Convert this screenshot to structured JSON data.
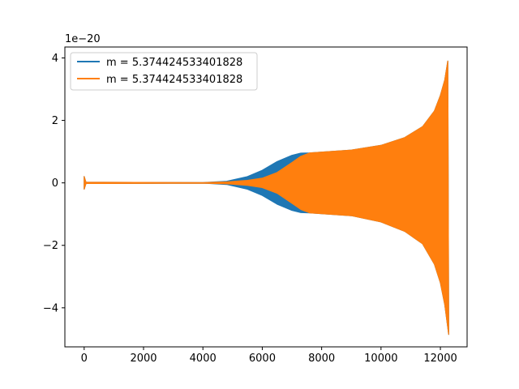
{
  "chart_data": {
    "type": "line",
    "title": "",
    "xlabel": "",
    "ylabel": "",
    "y_offset_text": "1e−20",
    "xlim": [
      -650,
      12900
    ],
    "ylim": [
      -5.25,
      4.35
    ],
    "x_ticks": [
      0,
      2000,
      4000,
      6000,
      8000,
      10000,
      12000
    ],
    "x_tick_labels": [
      "0",
      "2000",
      "4000",
      "6000",
      "8000",
      "10000",
      "12000"
    ],
    "y_ticks": [
      -4,
      -2,
      0,
      2,
      4
    ],
    "y_tick_labels": [
      "−4",
      "−2",
      "0",
      "2",
      "4"
    ],
    "grid": false,
    "legend_position": "upper left",
    "series": [
      {
        "name": "m = 5.374424533401828",
        "color": "#1f77b4",
        "envelope_upper": [
          [
            0,
            0.2
          ],
          [
            60,
            0.02
          ],
          [
            4000,
            0.01
          ],
          [
            4800,
            0.05
          ],
          [
            5500,
            0.2
          ],
          [
            6000,
            0.4
          ],
          [
            6500,
            0.68
          ],
          [
            7000,
            0.88
          ],
          [
            7300,
            0.95
          ],
          [
            7600,
            0.96
          ],
          [
            9000,
            1.05
          ],
          [
            10000,
            1.2
          ],
          [
            10800,
            1.45
          ],
          [
            11400,
            1.8
          ],
          [
            11800,
            2.3
          ],
          [
            12000,
            2.8
          ],
          [
            12150,
            3.3
          ],
          [
            12250,
            3.9
          ]
        ],
        "envelope_lower": [
          [
            0,
            -0.2
          ],
          [
            60,
            -0.02
          ],
          [
            4000,
            -0.01
          ],
          [
            4800,
            -0.05
          ],
          [
            5500,
            -0.2
          ],
          [
            6000,
            -0.4
          ],
          [
            6500,
            -0.68
          ],
          [
            7000,
            -0.88
          ],
          [
            7300,
            -0.95
          ],
          [
            7600,
            -0.96
          ],
          [
            9000,
            -1.05
          ],
          [
            10000,
            -1.25
          ],
          [
            10800,
            -1.55
          ],
          [
            11400,
            -1.95
          ],
          [
            11800,
            -2.6
          ],
          [
            12000,
            -3.2
          ],
          [
            12150,
            -3.9
          ],
          [
            12280,
            -4.85
          ]
        ]
      },
      {
        "name": "m = 5.374424533401828",
        "color": "#ff7f0e",
        "envelope_upper": [
          [
            0,
            0.2
          ],
          [
            60,
            0.02
          ],
          [
            4000,
            0.01
          ],
          [
            4800,
            0.03
          ],
          [
            5500,
            0.08
          ],
          [
            6000,
            0.15
          ],
          [
            6500,
            0.33
          ],
          [
            7000,
            0.65
          ],
          [
            7300,
            0.85
          ],
          [
            7600,
            0.96
          ],
          [
            9000,
            1.05
          ],
          [
            10000,
            1.2
          ],
          [
            10800,
            1.45
          ],
          [
            11400,
            1.8
          ],
          [
            11800,
            2.3
          ],
          [
            12000,
            2.8
          ],
          [
            12150,
            3.3
          ],
          [
            12250,
            3.9
          ]
        ],
        "envelope_lower": [
          [
            0,
            -0.2
          ],
          [
            60,
            -0.02
          ],
          [
            4000,
            -0.01
          ],
          [
            4800,
            -0.03
          ],
          [
            5500,
            -0.08
          ],
          [
            6000,
            -0.15
          ],
          [
            6500,
            -0.33
          ],
          [
            7000,
            -0.65
          ],
          [
            7300,
            -0.85
          ],
          [
            7600,
            -0.96
          ],
          [
            9000,
            -1.05
          ],
          [
            10000,
            -1.25
          ],
          [
            10800,
            -1.55
          ],
          [
            11400,
            -1.95
          ],
          [
            11800,
            -2.6
          ],
          [
            12000,
            -3.2
          ],
          [
            12150,
            -3.9
          ],
          [
            12280,
            -4.85
          ]
        ]
      }
    ]
  }
}
